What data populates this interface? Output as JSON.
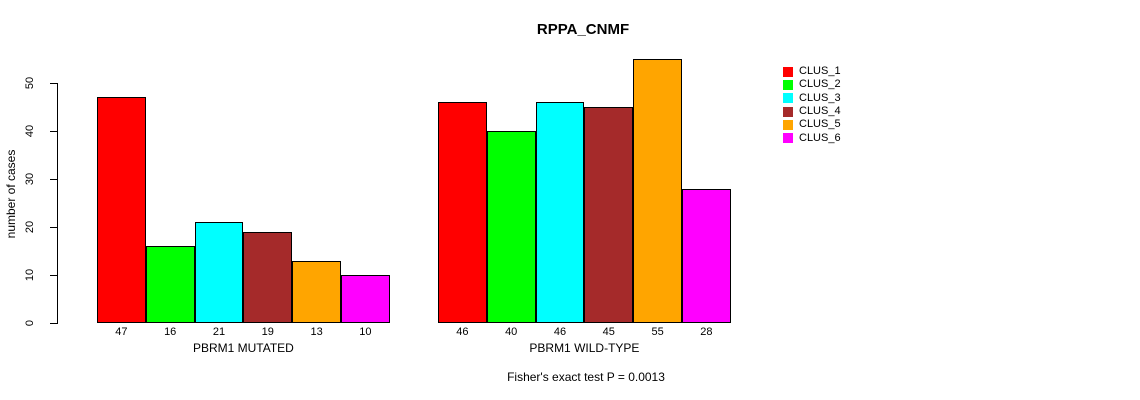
{
  "title": "RPPA_CNMF",
  "footer": "Fisher's exact test P = 0.0013",
  "y_axis": {
    "label": "number of cases",
    "ticks": [
      "0",
      "10",
      "20",
      "30",
      "40",
      "50"
    ]
  },
  "legend": {
    "entries": [
      {
        "label": "CLUS_1",
        "color": "#FF0000"
      },
      {
        "label": "CLUS_2",
        "color": "#00FF00"
      },
      {
        "label": "CLUS_3",
        "color": "#00FFFF"
      },
      {
        "label": "CLUS_4",
        "color": "#A52A2A"
      },
      {
        "label": "CLUS_5",
        "color": "#FFA500"
      },
      {
        "label": "CLUS_6",
        "color": "#FF00FF"
      }
    ]
  },
  "chart_data": {
    "type": "bar",
    "title": "RPPA_CNMF",
    "ylabel": "number of cases",
    "ylim": [
      0,
      57
    ],
    "yticks": [
      0,
      10,
      20,
      30,
      40,
      50
    ],
    "grid": false,
    "legend_position": "right",
    "series_labels": [
      "CLUS_1",
      "CLUS_2",
      "CLUS_3",
      "CLUS_4",
      "CLUS_5",
      "CLUS_6"
    ],
    "colors": [
      "#FF0000",
      "#00FF00",
      "#00FFFF",
      "#A52A2A",
      "#FFA500",
      "#FF00FF"
    ],
    "groups": [
      {
        "label": "PBRM1 MUTATED",
        "values": [
          47,
          16,
          21,
          19,
          13,
          10
        ]
      },
      {
        "label": "PBRM1 WILD-TYPE",
        "values": [
          46,
          40,
          46,
          45,
          55,
          28
        ]
      }
    ],
    "annotation": "Fisher's exact test P = 0.0013"
  }
}
